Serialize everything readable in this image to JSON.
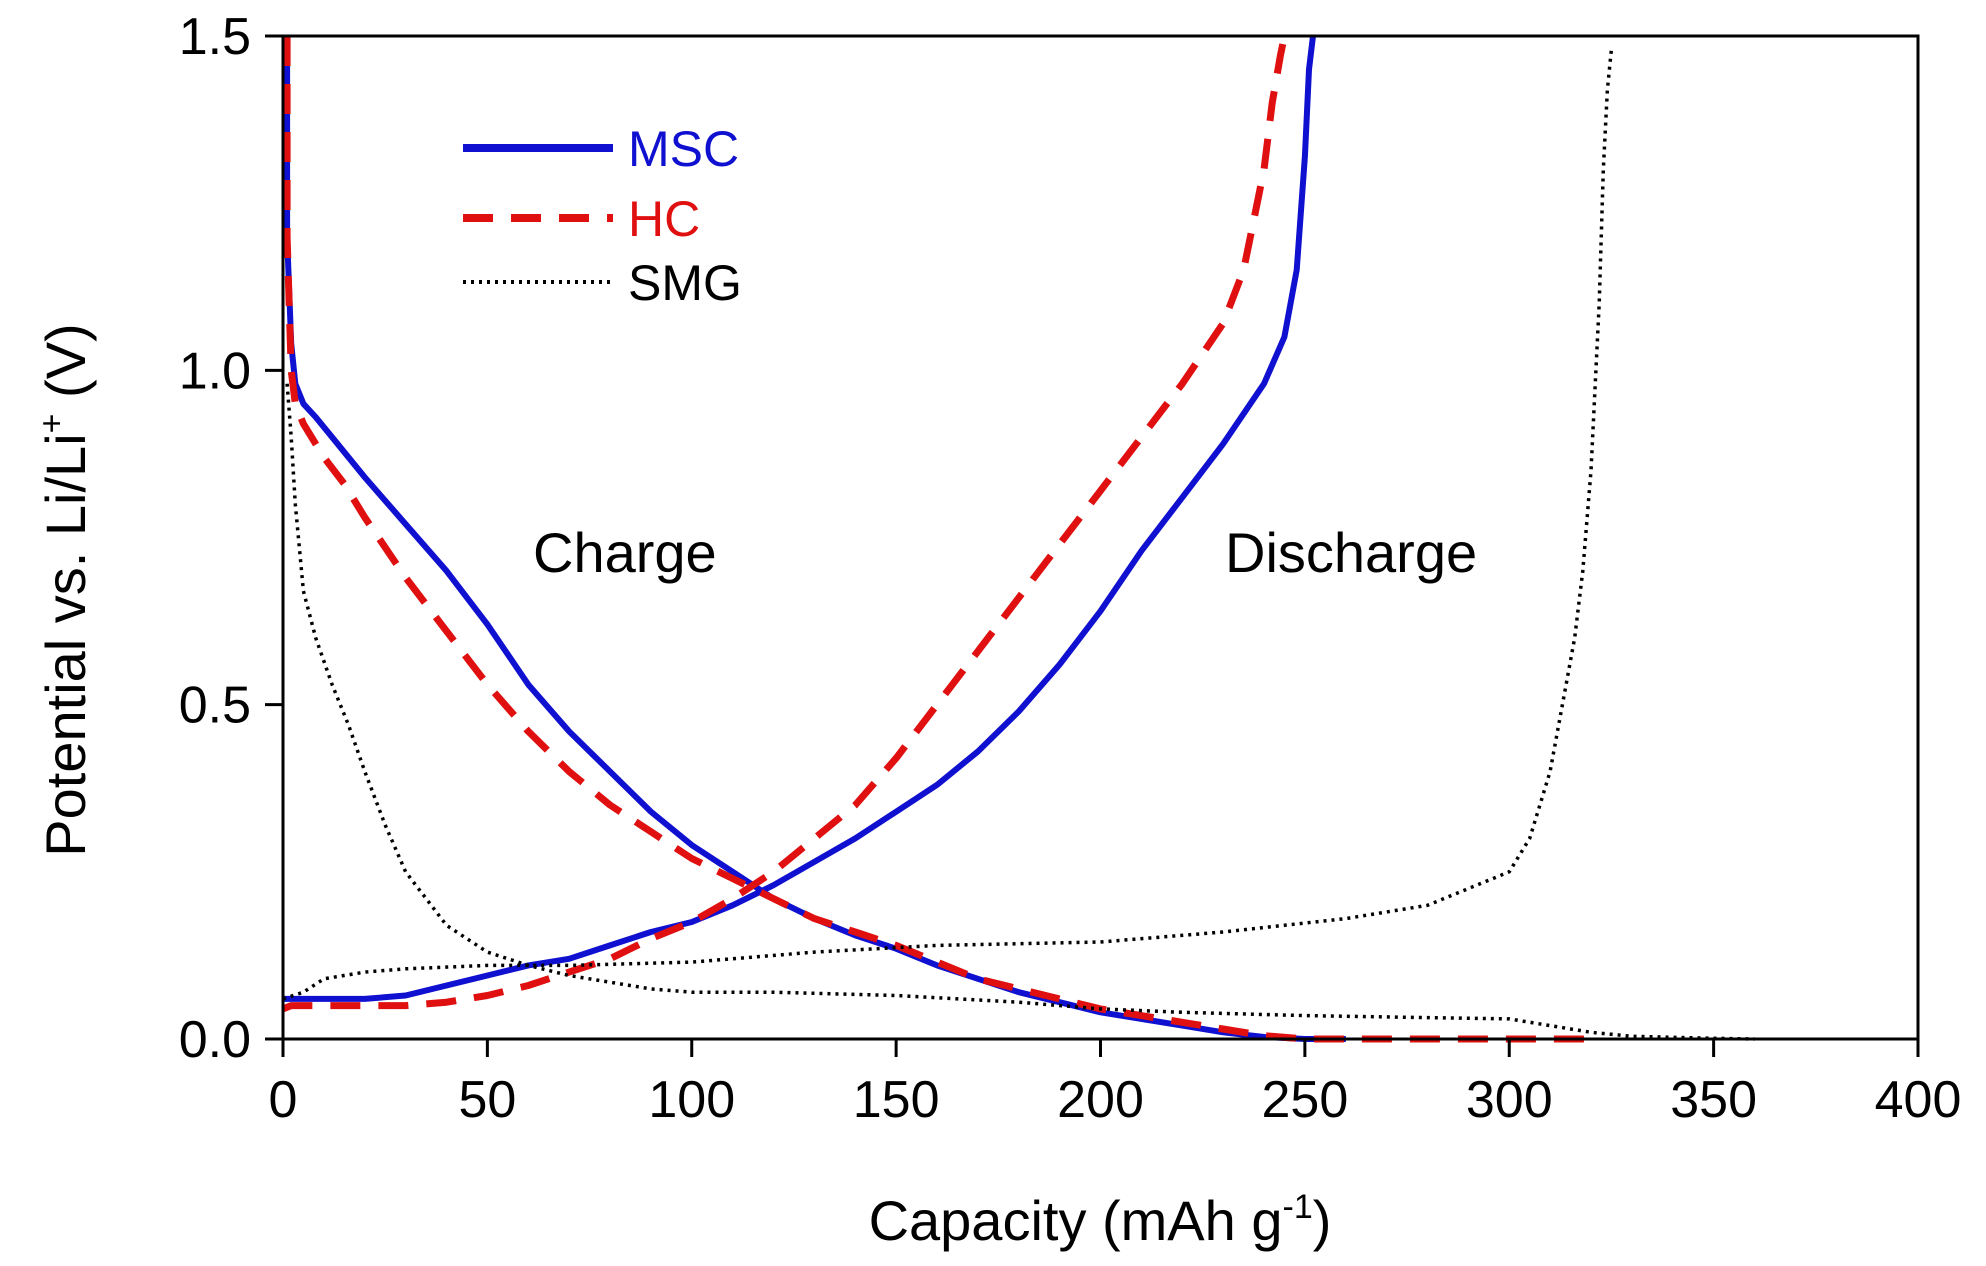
{
  "chart_data": {
    "type": "line",
    "title": "",
    "xlabel": {
      "main": "Capacity (mAh g",
      "sup": "-1",
      "close": ")"
    },
    "ylabel": {
      "main": "Potential vs. Li/Li",
      "sup": "+",
      "close": " (V)"
    },
    "xlim": [
      0,
      400
    ],
    "ylim": [
      0,
      1.5
    ],
    "xticks": [
      0,
      50,
      100,
      150,
      200,
      250,
      300,
      350,
      400
    ],
    "xtick_labels": [
      "0",
      "50",
      "100",
      "150",
      "200",
      "250",
      "300",
      "350",
      "400"
    ],
    "yticks": [
      0,
      0.5,
      1.0,
      1.5
    ],
    "ytick_labels": [
      "0.0",
      "0.5",
      "1.0",
      "1.5"
    ],
    "grid": false,
    "legend_position": "top-left",
    "annotations": [
      {
        "text": "Charge",
        "x": 92,
        "y": 0.73
      },
      {
        "text": "Discharge",
        "x": 270,
        "y": 0.73
      }
    ],
    "series": [
      {
        "name": "MSC",
        "color": "#1010d0",
        "style": "solid",
        "role": "charge",
        "x": [
          1,
          1,
          2,
          3,
          5,
          8,
          12,
          20,
          30,
          40,
          50,
          60,
          70,
          80,
          90,
          100,
          110,
          120,
          130,
          140,
          150,
          160,
          170,
          180,
          190,
          200,
          210,
          220,
          230,
          240,
          250,
          260
        ],
        "y": [
          1.5,
          1.2,
          1.04,
          0.98,
          0.95,
          0.93,
          0.9,
          0.84,
          0.77,
          0.7,
          0.62,
          0.53,
          0.46,
          0.4,
          0.34,
          0.29,
          0.25,
          0.21,
          0.18,
          0.155,
          0.135,
          0.11,
          0.09,
          0.07,
          0.055,
          0.04,
          0.03,
          0.02,
          0.01,
          0.003,
          0.0,
          0.0
        ]
      },
      {
        "name": "MSC",
        "color": "#1010d0",
        "style": "solid",
        "role": "discharge",
        "x": [
          0,
          2,
          5,
          10,
          20,
          30,
          40,
          50,
          60,
          70,
          80,
          90,
          100,
          110,
          120,
          130,
          140,
          150,
          160,
          170,
          180,
          190,
          200,
          210,
          220,
          230,
          240,
          245,
          248,
          250,
          251,
          252
        ],
        "y": [
          0.06,
          0.06,
          0.06,
          0.06,
          0.06,
          0.065,
          0.08,
          0.095,
          0.11,
          0.12,
          0.14,
          0.16,
          0.175,
          0.2,
          0.23,
          0.265,
          0.3,
          0.34,
          0.38,
          0.43,
          0.49,
          0.56,
          0.64,
          0.73,
          0.81,
          0.89,
          0.98,
          1.05,
          1.15,
          1.32,
          1.45,
          1.5
        ]
      },
      {
        "name": "HC",
        "color": "#e01010",
        "style": "dashed",
        "role": "charge",
        "x": [
          1,
          1,
          2,
          3,
          5,
          10,
          15,
          20,
          30,
          40,
          50,
          60,
          70,
          80,
          90,
          100,
          110,
          120,
          130,
          140,
          150,
          160,
          170,
          180,
          190,
          200,
          210,
          220,
          230,
          240,
          250,
          260,
          280,
          300,
          320
        ],
        "y": [
          1.5,
          1.2,
          1.0,
          0.95,
          0.92,
          0.87,
          0.83,
          0.78,
          0.69,
          0.61,
          0.53,
          0.46,
          0.4,
          0.35,
          0.31,
          0.27,
          0.24,
          0.21,
          0.18,
          0.16,
          0.14,
          0.115,
          0.09,
          0.075,
          0.06,
          0.045,
          0.035,
          0.025,
          0.015,
          0.005,
          0.0,
          0.0,
          0.0,
          0.0,
          0.0
        ]
      },
      {
        "name": "HC",
        "color": "#e01010",
        "style": "dashed",
        "role": "discharge",
        "x": [
          0,
          2,
          5,
          10,
          20,
          30,
          40,
          50,
          60,
          70,
          80,
          90,
          100,
          110,
          120,
          130,
          140,
          150,
          160,
          170,
          180,
          190,
          200,
          210,
          220,
          230,
          235,
          240,
          242,
          244,
          245
        ],
        "y": [
          0.045,
          0.05,
          0.05,
          0.05,
          0.05,
          0.05,
          0.055,
          0.065,
          0.08,
          0.1,
          0.12,
          0.15,
          0.175,
          0.21,
          0.25,
          0.3,
          0.35,
          0.42,
          0.5,
          0.58,
          0.66,
          0.74,
          0.82,
          0.9,
          0.98,
          1.07,
          1.15,
          1.3,
          1.4,
          1.47,
          1.5
        ]
      },
      {
        "name": "SMG",
        "color": "#000000",
        "style": "dotted",
        "role": "charge",
        "x": [
          1,
          2,
          3,
          5,
          8,
          12,
          16,
          20,
          25,
          30,
          40,
          50,
          60,
          70,
          80,
          90,
          100,
          120,
          150,
          180,
          200,
          220,
          250,
          280,
          300,
          310,
          320,
          330,
          350,
          360
        ],
        "y": [
          0.98,
          0.9,
          0.8,
          0.67,
          0.6,
          0.53,
          0.47,
          0.4,
          0.32,
          0.25,
          0.17,
          0.13,
          0.11,
          0.095,
          0.085,
          0.075,
          0.07,
          0.07,
          0.065,
          0.055,
          0.045,
          0.04,
          0.035,
          0.032,
          0.03,
          0.02,
          0.01,
          0.004,
          0.001,
          0.0
        ]
      },
      {
        "name": "SMG",
        "color": "#000000",
        "style": "dotted",
        "role": "discharge",
        "x": [
          0,
          5,
          10,
          20,
          30,
          50,
          70,
          100,
          130,
          160,
          200,
          230,
          260,
          280,
          300,
          305,
          310,
          313,
          316,
          318,
          320,
          322,
          323,
          324,
          325
        ],
        "y": [
          0.06,
          0.07,
          0.09,
          0.1,
          0.105,
          0.11,
          0.11,
          0.115,
          0.13,
          0.14,
          0.145,
          0.16,
          0.18,
          0.2,
          0.25,
          0.3,
          0.4,
          0.5,
          0.6,
          0.7,
          0.85,
          1.1,
          1.3,
          1.42,
          1.48
        ]
      }
    ]
  },
  "legend": [
    {
      "label": "MSC",
      "color": "#1010d0",
      "style": "solid"
    },
    {
      "label": "HC",
      "color": "#e01010",
      "style": "dashed"
    },
    {
      "label": "SMG",
      "color": "#000000",
      "style": "dotted"
    }
  ]
}
